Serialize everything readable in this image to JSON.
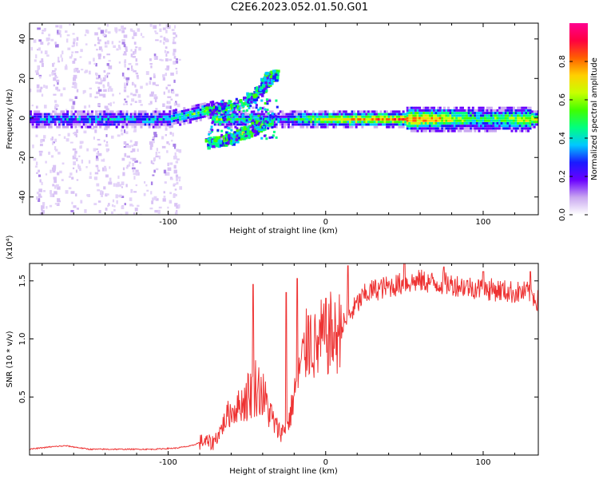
{
  "figure_title": "C2E6.2023.052.01.50.G01",
  "chart_data": [
    {
      "type": "heatmap",
      "xlabel": "Height of straight line (km)",
      "ylabel": "Frequency (Hz)",
      "xlim": [
        -188,
        135
      ],
      "ylim": [
        -49,
        48
      ],
      "x_ticks": [
        -100,
        0,
        100
      ],
      "y_ticks": [
        -40,
        -20,
        0,
        20,
        40
      ],
      "colorbar": {
        "label": "Normalized spectral amplitude",
        "range": [
          0,
          1
        ],
        "ticks": [
          "0.0",
          "0.2",
          "0.4",
          "0.6",
          "0.8"
        ],
        "colormap": [
          "#ffffff",
          "#c9a7f0",
          "#6a00ff",
          "#1a1aff",
          "#00c8ff",
          "#00ff80",
          "#40ff00",
          "#c8ff00",
          "#ffd000",
          "#ff6000",
          "#ff0040",
          "#ff0090"
        ]
      },
      "features": [
        {
          "name": "carrier",
          "x": [
            -188,
            135
          ],
          "frequency": 0,
          "amplitude_by_x": [
            [
              -188,
              0.3
            ],
            [
              -150,
              0.35
            ],
            [
              -100,
              0.4
            ],
            [
              -75,
              0.55
            ],
            [
              -30,
              0.3
            ],
            [
              0,
              0.7
            ],
            [
              60,
              0.85
            ],
            [
              100,
              0.5
            ],
            [
              135,
              0.7
            ]
          ]
        },
        {
          "name": "rising-branch",
          "points": [
            [
              -75,
              5
            ],
            [
              -60,
              6
            ],
            [
              -45,
              12
            ],
            [
              -38,
              20
            ],
            [
              -32,
              23
            ]
          ]
        },
        {
          "name": "falling-branch",
          "points": [
            [
              -75,
              -12
            ],
            [
              -65,
              -11
            ],
            [
              -55,
              -8
            ],
            [
              -45,
              -4
            ],
            [
              -35,
              0
            ]
          ]
        },
        {
          "name": "vertical-streaks",
          "x": [
            -182,
            -172,
            -160,
            -145,
            -140,
            -128,
            -122,
            -110,
            -102,
            -97
          ]
        }
      ]
    },
    {
      "type": "line",
      "xlabel": "Height of straight line (km)",
      "ylabel": "SNR (10 * v/v)",
      "y_multiplier": "(x10⁴)",
      "xlim": [
        -188,
        135
      ],
      "ylim": [
        0,
        1.65
      ],
      "x_ticks": [
        -100,
        0,
        100
      ],
      "y_ticks": [
        0.5,
        1.0,
        1.5
      ],
      "y_tick_labels": [
        "0.5",
        "1.0",
        "1.5"
      ],
      "series": [
        {
          "color": "#ee3333",
          "x": [
            -188,
            -175,
            -165,
            -150,
            -130,
            -110,
            -95,
            -85,
            -78,
            -72,
            -68,
            -62,
            -57,
            -53,
            -50,
            -47,
            -44,
            -41,
            -38,
            -35,
            -32,
            -29,
            -26,
            -23,
            -21,
            -19,
            -17,
            -15,
            -12,
            -9,
            -6,
            -3,
            0,
            3,
            6,
            10,
            15,
            20,
            25,
            30,
            40,
            50,
            60,
            70,
            80,
            90,
            100,
            110,
            120,
            130,
            135
          ],
          "y": [
            0.05,
            0.07,
            0.08,
            0.05,
            0.05,
            0.05,
            0.06,
            0.08,
            0.12,
            0.1,
            0.18,
            0.35,
            0.4,
            0.45,
            0.5,
            0.55,
            0.6,
            0.55,
            0.45,
            0.35,
            0.25,
            0.2,
            0.22,
            0.3,
            0.45,
            0.6,
            0.7,
            0.8,
            0.95,
            1.0,
            0.9,
            1.0,
            1.0,
            1.05,
            1.0,
            1.1,
            1.2,
            1.3,
            1.38,
            1.42,
            1.45,
            1.48,
            1.5,
            1.48,
            1.47,
            1.45,
            1.43,
            1.42,
            1.4,
            1.4,
            1.32
          ],
          "peaks": [
            [
              -46,
              1.47
            ],
            [
              -25,
              1.4
            ],
            [
              -18,
              1.52
            ],
            [
              -11,
              1.2
            ],
            [
              0,
              1.35
            ],
            [
              14,
              1.63
            ],
            [
              50,
              1.65
            ],
            [
              75,
              1.62
            ],
            [
              100,
              1.58
            ],
            [
              130,
              1.58
            ]
          ]
        }
      ]
    }
  ]
}
